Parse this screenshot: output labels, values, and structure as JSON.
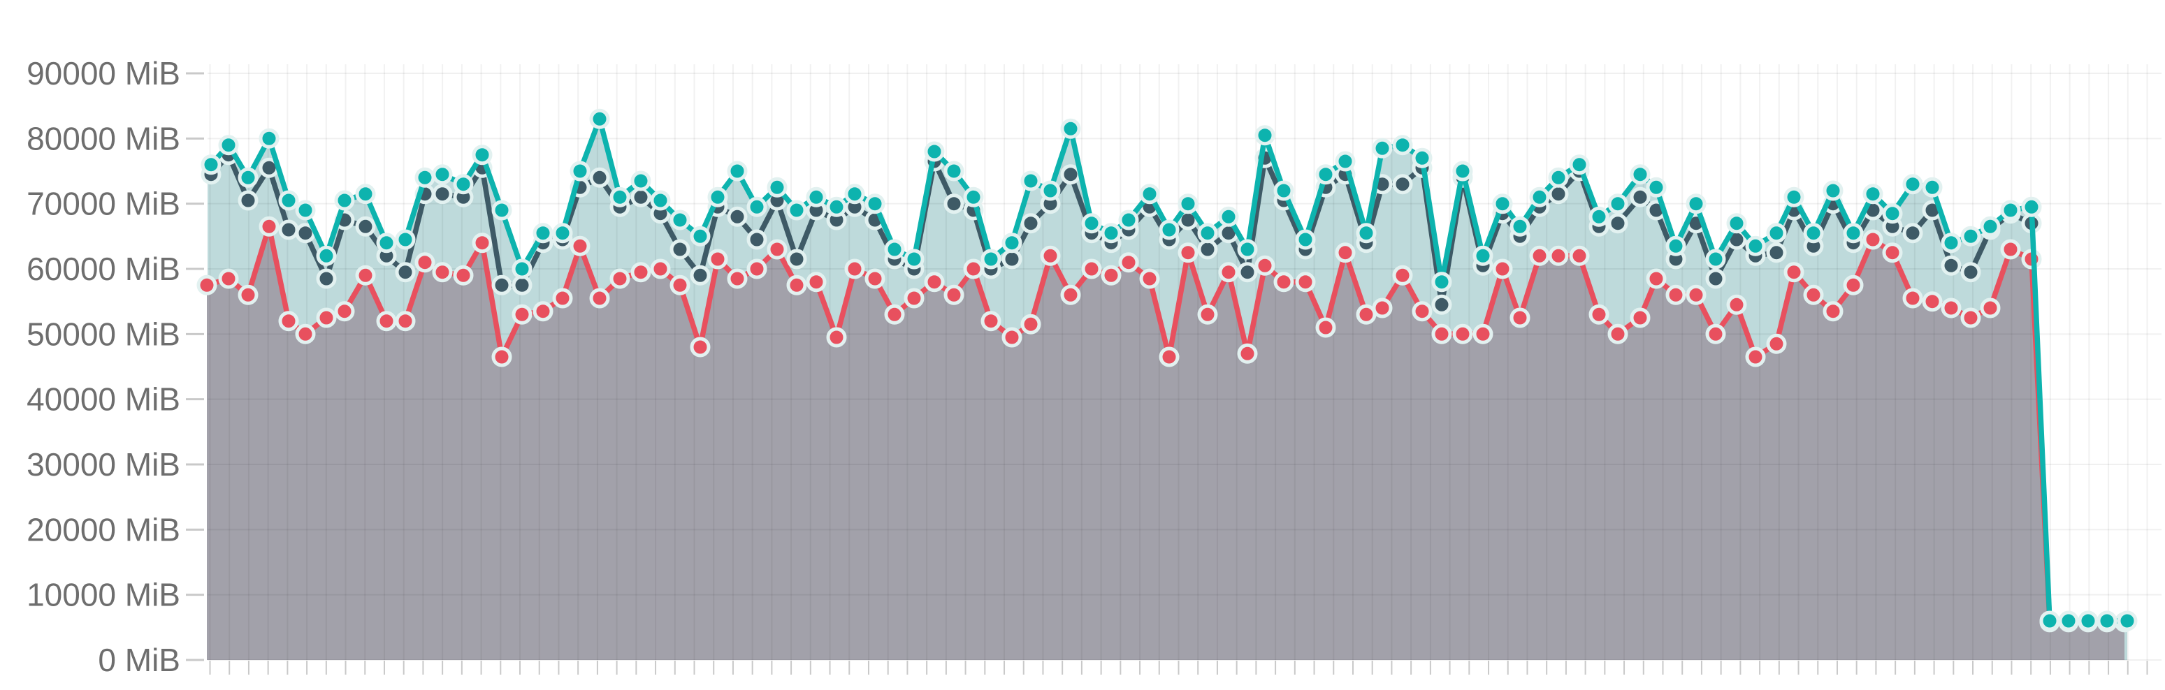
{
  "page": {
    "background": "#ffffff"
  },
  "chart_data": {
    "type": "line",
    "title": "",
    "xlabel": "",
    "ylabel": "",
    "unit": "MiB",
    "grid": true,
    "legend_position": "none",
    "y_axis": {
      "min": 0,
      "max": 90000,
      "step": 10000,
      "suffix": " MiB",
      "labels": [
        "90000 MiB",
        "80000 MiB",
        "70000 MiB",
        "60000 MiB",
        "50000 MiB",
        "40000 MiB",
        "30000 MiB",
        "20000 MiB",
        "10000 MiB",
        "0 MiB"
      ]
    },
    "plot": {
      "left": 297,
      "right_edge": 3093,
      "y_zero": 945,
      "y_max": 105,
      "vgrid_start": 300.5,
      "vgrid_step": 27.72,
      "vgrid_count": 101,
      "vgrid_top": 92,
      "tick_bottom": 966
    },
    "colors": {
      "teal_line": "#0db3ae",
      "teal_fill": "#bedadb",
      "slate_line": "#3e5a66",
      "red_line": "#e8505e",
      "gray_fill": "#a2a1aa",
      "dot_ring": "#e2f1f0",
      "h_gridline": "rgba(0,0,0,0.06)",
      "v_gridline": "rgba(0,0,0,0.055)",
      "axis_tick": "#c9c9c9",
      "label_text": "#6e6e6e"
    },
    "series": [
      {
        "name": "memory-teal",
        "color": "#0db3ae",
        "fill": "#bedadb",
        "has_area": true,
        "points": [
          [
            302,
            76000
          ],
          [
            327,
            79000
          ],
          [
            355,
            74000
          ],
          [
            385,
            80000
          ],
          [
            413,
            70500
          ],
          [
            437,
            69000
          ],
          [
            467,
            62000
          ],
          [
            493,
            70500
          ],
          [
            523,
            71500
          ],
          [
            553,
            64000
          ],
          [
            580,
            64500
          ],
          [
            608,
            74000
          ],
          [
            633,
            74500
          ],
          [
            663,
            73000
          ],
          [
            690,
            77500
          ],
          [
            718,
            69000
          ],
          [
            747,
            60000
          ],
          [
            777,
            65500
          ],
          [
            805,
            65500
          ],
          [
            830,
            75000
          ],
          [
            858,
            83000
          ],
          [
            887,
            71000
          ],
          [
            917,
            73500
          ],
          [
            945,
            70500
          ],
          [
            973,
            67500
          ],
          [
            1002,
            65000
          ],
          [
            1027,
            71000
          ],
          [
            1055,
            75000
          ],
          [
            1083,
            69500
          ],
          [
            1112,
            72500
          ],
          [
            1140,
            69000
          ],
          [
            1168,
            71000
          ],
          [
            1197,
            69500
          ],
          [
            1223,
            71500
          ],
          [
            1252,
            70000
          ],
          [
            1280,
            63000
          ],
          [
            1308,
            61500
          ],
          [
            1337,
            78000
          ],
          [
            1365,
            75000
          ],
          [
            1393,
            71000
          ],
          [
            1418,
            61500
          ],
          [
            1448,
            64000
          ],
          [
            1475,
            73500
          ],
          [
            1503,
            72000
          ],
          [
            1532,
            81500
          ],
          [
            1562,
            67000
          ],
          [
            1590,
            65500
          ],
          [
            1615,
            67500
          ],
          [
            1645,
            71500
          ],
          [
            1673,
            66000
          ],
          [
            1700,
            70000
          ],
          [
            1728,
            65500
          ],
          [
            1758,
            68000
          ],
          [
            1785,
            63000
          ],
          [
            1810,
            80500
          ],
          [
            1837,
            72000
          ],
          [
            1868,
            64500
          ],
          [
            1897,
            74500
          ],
          [
            1925,
            76500
          ],
          [
            1955,
            65500
          ],
          [
            1978,
            78500
          ],
          [
            2007,
            79000
          ],
          [
            2035,
            77000
          ],
          [
            2063,
            58000
          ],
          [
            2093,
            75000
          ],
          [
            2122,
            62000
          ],
          [
            2150,
            70000
          ],
          [
            2175,
            66500
          ],
          [
            2203,
            71000
          ],
          [
            2230,
            74000
          ],
          [
            2260,
            76000
          ],
          [
            2288,
            68000
          ],
          [
            2315,
            70000
          ],
          [
            2347,
            74500
          ],
          [
            2370,
            72500
          ],
          [
            2398,
            63500
          ],
          [
            2427,
            70000
          ],
          [
            2455,
            61500
          ],
          [
            2485,
            67000
          ],
          [
            2512,
            63500
          ],
          [
            2542,
            65500
          ],
          [
            2567,
            71000
          ],
          [
            2595,
            65500
          ],
          [
            2623,
            72000
          ],
          [
            2652,
            65500
          ],
          [
            2680,
            71500
          ],
          [
            2708,
            68500
          ],
          [
            2737,
            73000
          ],
          [
            2765,
            72500
          ],
          [
            2792,
            64000
          ],
          [
            2820,
            65000
          ],
          [
            2848,
            66500
          ],
          [
            2877,
            69000
          ],
          [
            2907,
            69500
          ],
          [
            2933,
            6000
          ],
          [
            2960,
            6000
          ],
          [
            2988,
            6000
          ],
          [
            3015,
            6000
          ],
          [
            3044,
            6000
          ]
        ]
      },
      {
        "name": "memory-slate",
        "color": "#3e5a66",
        "fill": null,
        "has_area": false,
        "points": [
          [
            302,
            74500
          ],
          [
            327,
            77500
          ],
          [
            355,
            70500
          ],
          [
            385,
            75500
          ],
          [
            413,
            66000
          ],
          [
            437,
            65500
          ],
          [
            467,
            58500
          ],
          [
            493,
            67500
          ],
          [
            523,
            66500
          ],
          [
            553,
            62000
          ],
          [
            580,
            59500
          ],
          [
            608,
            71500
          ],
          [
            633,
            71500
          ],
          [
            663,
            71000
          ],
          [
            690,
            75500
          ],
          [
            718,
            57500
          ],
          [
            747,
            57500
          ],
          [
            777,
            64000
          ],
          [
            805,
            64500
          ],
          [
            830,
            72500
          ],
          [
            858,
            74000
          ],
          [
            887,
            69500
          ],
          [
            917,
            71000
          ],
          [
            945,
            68500
          ],
          [
            973,
            63000
          ],
          [
            1002,
            59000
          ],
          [
            1027,
            69500
          ],
          [
            1055,
            68000
          ],
          [
            1083,
            64500
          ],
          [
            1112,
            70500
          ],
          [
            1140,
            61500
          ],
          [
            1168,
            69000
          ],
          [
            1197,
            67500
          ],
          [
            1223,
            69500
          ],
          [
            1252,
            67500
          ],
          [
            1280,
            61500
          ],
          [
            1308,
            60000
          ],
          [
            1337,
            76500
          ],
          [
            1365,
            70000
          ],
          [
            1393,
            69000
          ],
          [
            1418,
            60000
          ],
          [
            1448,
            61500
          ],
          [
            1475,
            67000
          ],
          [
            1503,
            70000
          ],
          [
            1532,
            74500
          ],
          [
            1562,
            65500
          ],
          [
            1590,
            64000
          ],
          [
            1615,
            66000
          ],
          [
            1645,
            69500
          ],
          [
            1673,
            64500
          ],
          [
            1700,
            67500
          ],
          [
            1728,
            63000
          ],
          [
            1758,
            65500
          ],
          [
            1785,
            59500
          ],
          [
            1810,
            77000
          ],
          [
            1837,
            70500
          ],
          [
            1868,
            63000
          ],
          [
            1897,
            72500
          ],
          [
            1925,
            74500
          ],
          [
            1955,
            64000
          ],
          [
            1978,
            73000
          ],
          [
            2007,
            73000
          ],
          [
            2035,
            75500
          ],
          [
            2063,
            54500
          ],
          [
            2093,
            74000
          ],
          [
            2122,
            60500
          ],
          [
            2150,
            68500
          ],
          [
            2175,
            65000
          ],
          [
            2203,
            69500
          ],
          [
            2230,
            71500
          ],
          [
            2260,
            75000
          ],
          [
            2288,
            66500
          ],
          [
            2315,
            67000
          ],
          [
            2347,
            71000
          ],
          [
            2370,
            69000
          ],
          [
            2398,
            61500
          ],
          [
            2427,
            67000
          ],
          [
            2455,
            58500
          ],
          [
            2485,
            64500
          ],
          [
            2512,
            62000
          ],
          [
            2542,
            62500
          ],
          [
            2567,
            69000
          ],
          [
            2595,
            63500
          ],
          [
            2623,
            70000
          ],
          [
            2652,
            64000
          ],
          [
            2680,
            69000
          ],
          [
            2708,
            66500
          ],
          [
            2737,
            65500
          ],
          [
            2765,
            69000
          ],
          [
            2792,
            60500
          ],
          [
            2820,
            59500
          ],
          [
            2848,
            66000
          ],
          [
            2877,
            68500
          ],
          [
            2907,
            67000
          ]
        ]
      },
      {
        "name": "memory-red",
        "color": "#e8505e",
        "fill": "#a2a1aa",
        "has_area": true,
        "points": [
          [
            296,
            57500
          ],
          [
            327,
            58500
          ],
          [
            355,
            56000
          ],
          [
            385,
            66500
          ],
          [
            413,
            52000
          ],
          [
            437,
            50000
          ],
          [
            467,
            52500
          ],
          [
            493,
            53500
          ],
          [
            523,
            59000
          ],
          [
            553,
            52000
          ],
          [
            580,
            52000
          ],
          [
            608,
            61000
          ],
          [
            633,
            59500
          ],
          [
            663,
            59000
          ],
          [
            690,
            64000
          ],
          [
            718,
            46500
          ],
          [
            747,
            53000
          ],
          [
            777,
            53500
          ],
          [
            805,
            55500
          ],
          [
            830,
            63500
          ],
          [
            858,
            55500
          ],
          [
            887,
            58500
          ],
          [
            917,
            59500
          ],
          [
            945,
            60000
          ],
          [
            973,
            57500
          ],
          [
            1002,
            48000
          ],
          [
            1027,
            61500
          ],
          [
            1055,
            58500
          ],
          [
            1083,
            60000
          ],
          [
            1112,
            63000
          ],
          [
            1140,
            57500
          ],
          [
            1168,
            58000
          ],
          [
            1197,
            49500
          ],
          [
            1223,
            60000
          ],
          [
            1252,
            58500
          ],
          [
            1280,
            53000
          ],
          [
            1308,
            55500
          ],
          [
            1337,
            58000
          ],
          [
            1365,
            56000
          ],
          [
            1393,
            60000
          ],
          [
            1418,
            52000
          ],
          [
            1448,
            49500
          ],
          [
            1475,
            51500
          ],
          [
            1503,
            62000
          ],
          [
            1532,
            56000
          ],
          [
            1562,
            60000
          ],
          [
            1590,
            59000
          ],
          [
            1615,
            61000
          ],
          [
            1645,
            58500
          ],
          [
            1673,
            46500
          ],
          [
            1700,
            62500
          ],
          [
            1728,
            53000
          ],
          [
            1758,
            59500
          ],
          [
            1785,
            47000
          ],
          [
            1810,
            60500
          ],
          [
            1837,
            58000
          ],
          [
            1868,
            58000
          ],
          [
            1897,
            51000
          ],
          [
            1925,
            62500
          ],
          [
            1955,
            53000
          ],
          [
            1978,
            54000
          ],
          [
            2007,
            59000
          ],
          [
            2035,
            53500
          ],
          [
            2063,
            50000
          ],
          [
            2093,
            50000
          ],
          [
            2122,
            50000
          ],
          [
            2150,
            60000
          ],
          [
            2175,
            52500
          ],
          [
            2203,
            62000
          ],
          [
            2230,
            62000
          ],
          [
            2260,
            62000
          ],
          [
            2288,
            53000
          ],
          [
            2315,
            50000
          ],
          [
            2347,
            52500
          ],
          [
            2370,
            58500
          ],
          [
            2398,
            56000
          ],
          [
            2427,
            56000
          ],
          [
            2455,
            50000
          ],
          [
            2485,
            54500
          ],
          [
            2512,
            46500
          ],
          [
            2542,
            48500
          ],
          [
            2567,
            59500
          ],
          [
            2595,
            56000
          ],
          [
            2623,
            53500
          ],
          [
            2652,
            57500
          ],
          [
            2680,
            64500
          ],
          [
            2708,
            62500
          ],
          [
            2737,
            55500
          ],
          [
            2765,
            55000
          ],
          [
            2792,
            54000
          ],
          [
            2820,
            52500
          ],
          [
            2848,
            54000
          ],
          [
            2877,
            63000
          ],
          [
            2907,
            61500
          ],
          [
            2933,
            5800
          ],
          [
            2960,
            5800
          ],
          [
            2988,
            5800
          ],
          [
            3015,
            5800
          ],
          [
            3040,
            5800
          ]
        ]
      }
    ],
    "style": {
      "line_width": 7.5,
      "dot_radius": 12,
      "dot_ring_width": 5
    }
  }
}
